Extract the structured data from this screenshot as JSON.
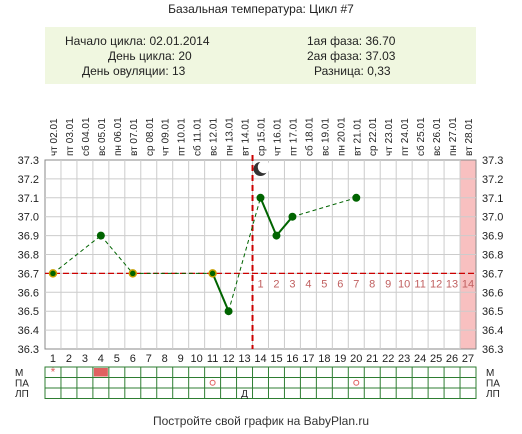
{
  "header": {
    "title": "Базальная температура: Цикл #7"
  },
  "info": {
    "cycle_start_label": "Начало цикла:",
    "cycle_start": "02.01.2014",
    "cycle_day_label": "День цикла:",
    "cycle_day": "20",
    "ovulation_day_label": "День овуляции:",
    "ovulation_day": "13",
    "phase1_label": "1ая фаза:",
    "phase1": "36.70",
    "phase2_label": "2ая фаза:",
    "phase2": "37.03",
    "diff_label": "Разница:",
    "diff": "0,33"
  },
  "footer": {
    "text": "Постройте свой график на BabyPlan.ru"
  },
  "row_labels": [
    "М",
    "ПА",
    "ЛП"
  ],
  "colors": {
    "line": "#006400",
    "coverline": "#cc0000",
    "ovulation_line": "#cc0000",
    "phase_number": "#c06060",
    "highlight_col": "#f8c0c0",
    "menses_mark": "#e06060",
    "grid": "#cccccc",
    "sheet_grid": "#2e7d32"
  },
  "chart_data": {
    "type": "line",
    "x": [
      "1",
      "2",
      "3",
      "4",
      "5",
      "6",
      "7",
      "8",
      "9",
      "10",
      "11",
      "12",
      "13",
      "14",
      "15",
      "16",
      "17",
      "18",
      "19",
      "20",
      "21",
      "22",
      "23",
      "24",
      "25",
      "26",
      "27"
    ],
    "dates": [
      "02.01",
      "03.01",
      "04.01",
      "05.01",
      "06.01",
      "07.01",
      "08.01",
      "09.01",
      "10.01",
      "11.01",
      "12.01",
      "13.01",
      "14.01",
      "15.01",
      "16.01",
      "17.01",
      "18.01",
      "19.01",
      "20.01",
      "21.01",
      "22.01",
      "23.01",
      "24.01",
      "25.01",
      "26.01",
      "27.01",
      "28.01"
    ],
    "weekdays": [
      "чт",
      "пт",
      "сб",
      "вс",
      "пн",
      "вт",
      "ср",
      "чт",
      "пт",
      "сб",
      "вс",
      "пн",
      "вт",
      "ср",
      "чт",
      "пт",
      "сб",
      "вс",
      "пн",
      "вт",
      "ср",
      "чт",
      "пт",
      "сб",
      "вс",
      "пн",
      "вт"
    ],
    "temps": [
      36.7,
      null,
      null,
      36.9,
      null,
      36.7,
      null,
      null,
      null,
      null,
      36.7,
      36.5,
      null,
      37.1,
      36.9,
      37.0,
      null,
      null,
      null,
      37.1,
      null,
      null,
      null,
      null,
      null,
      null,
      null
    ],
    "coverline": 36.7,
    "ovulation_day": 13,
    "moon_day": 14,
    "highlight_day": 27,
    "phase2_numbers": [
      "1",
      "2",
      "3",
      "4",
      "5",
      "6",
      "7",
      "8",
      "9",
      "10",
      "11",
      "12",
      "13",
      "14"
    ],
    "ylim": [
      36.3,
      37.3
    ],
    "yticks": [
      "36.3",
      "36.4",
      "36.5",
      "36.6",
      "36.7",
      "36.8",
      "36.9",
      "37.0",
      "37.1",
      "37.2",
      "37.3"
    ],
    "grid": true,
    "extra_rows": {
      "М": {
        "star_day": 1,
        "filled_day": 4
      },
      "ПА": {
        "circle_days": [
          11,
          20
        ]
      },
      "ЛП": {
        "text_day": 13,
        "text": "Д"
      }
    }
  }
}
